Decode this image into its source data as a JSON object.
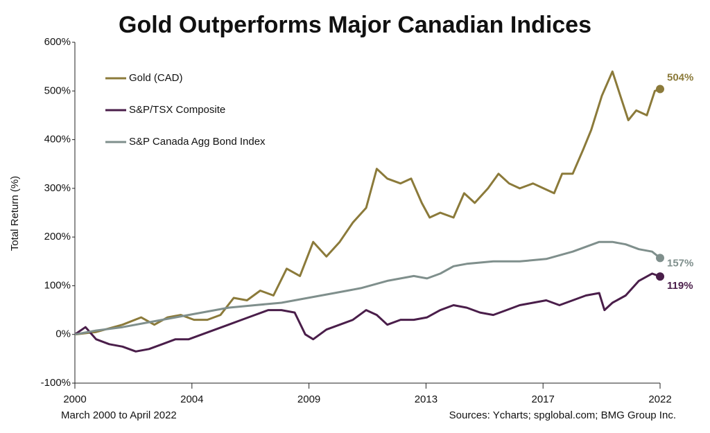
{
  "chart_data": {
    "type": "line",
    "title": "Gold Outperforms Major Canadian Indices",
    "subtitle": "March 2000 to April 2022",
    "source": "Sources: Ycharts; spglobal.com; BMG Group Inc.",
    "y_label": "Total Return (%)",
    "xlim": [
      2000.2,
      2022.3
    ],
    "xticks": [
      {
        "value": 2000.2,
        "label": "2000"
      },
      {
        "value": 2004.62,
        "label": "2004"
      },
      {
        "value": 2009.04,
        "label": "2009"
      },
      {
        "value": 2013.46,
        "label": "2013"
      },
      {
        "value": 2017.88,
        "label": "2017"
      },
      {
        "value": 2022.3,
        "label": "2022"
      }
    ],
    "ylim": [
      -100,
      600
    ],
    "yticks": [
      {
        "value": -100,
        "label": "-100%"
      },
      {
        "value": 0,
        "label": "0%"
      },
      {
        "value": 100,
        "label": "100%"
      },
      {
        "value": 200,
        "label": "200%"
      },
      {
        "value": 300,
        "label": "300%"
      },
      {
        "value": 400,
        "label": "400%"
      },
      {
        "value": 500,
        "label": "500%"
      },
      {
        "value": 600,
        "label": "600%"
      }
    ],
    "series": [
      {
        "name": "Gold (CAD)",
        "color": "#8b7a3a",
        "end_label": "504%",
        "x": [
          2000.2,
          2001,
          2002,
          2002.7,
          2003.2,
          2003.7,
          2004.2,
          2004.7,
          2005.2,
          2005.7,
          2006.2,
          2006.7,
          2007.2,
          2007.7,
          2008.2,
          2008.7,
          2009.2,
          2009.7,
          2010.2,
          2010.7,
          2011.2,
          2011.6,
          2012,
          2012.5,
          2012.9,
          2013.3,
          2013.6,
          2014,
          2014.5,
          2014.9,
          2015.3,
          2015.8,
          2016.2,
          2016.6,
          2017,
          2017.5,
          2017.9,
          2018.3,
          2018.6,
          2019,
          2019.4,
          2019.7,
          2020.1,
          2020.5,
          2020.8,
          2021.1,
          2021.4,
          2021.8,
          2022.1,
          2022.3
        ],
        "values": [
          0,
          5,
          20,
          35,
          20,
          35,
          40,
          30,
          30,
          40,
          75,
          70,
          90,
          80,
          135,
          120,
          190,
          160,
          190,
          230,
          260,
          340,
          320,
          310,
          320,
          270,
          240,
          250,
          240,
          290,
          270,
          300,
          330,
          310,
          300,
          310,
          300,
          290,
          330,
          330,
          380,
          420,
          490,
          540,
          490,
          440,
          460,
          450,
          500,
          504
        ]
      },
      {
        "name": "S&P/TSX Composite",
        "color": "#4a1e4a",
        "end_label": "119%",
        "x": [
          2000.2,
          2000.6,
          2001,
          2001.5,
          2002,
          2002.5,
          2003,
          2003.5,
          2004,
          2004.5,
          2005,
          2005.5,
          2006,
          2006.5,
          2007,
          2007.5,
          2008,
          2008.5,
          2008.9,
          2009.2,
          2009.7,
          2010.2,
          2010.7,
          2011.2,
          2011.6,
          2012,
          2012.5,
          2013,
          2013.5,
          2014,
          2014.5,
          2015,
          2015.5,
          2016,
          2016.5,
          2017,
          2017.5,
          2018,
          2018.5,
          2019,
          2019.5,
          2020,
          2020.2,
          2020.5,
          2021,
          2021.5,
          2022,
          2022.3
        ],
        "values": [
          0,
          15,
          -10,
          -20,
          -25,
          -35,
          -30,
          -20,
          -10,
          -10,
          0,
          10,
          20,
          30,
          40,
          50,
          50,
          45,
          0,
          -10,
          10,
          20,
          30,
          50,
          40,
          20,
          30,
          30,
          35,
          50,
          60,
          55,
          45,
          40,
          50,
          60,
          65,
          70,
          60,
          70,
          80,
          85,
          50,
          65,
          80,
          110,
          125,
          119
        ]
      },
      {
        "name": "S&P Canada Agg Bond Index",
        "color": "#7f8f8c",
        "end_label": "157%",
        "x": [
          2000.2,
          2001,
          2002,
          2003,
          2004,
          2005,
          2006,
          2007,
          2008,
          2009,
          2010,
          2011,
          2012,
          2013,
          2013.5,
          2014,
          2014.5,
          2015,
          2016,
          2017,
          2018,
          2019,
          2019.5,
          2020,
          2020.5,
          2021,
          2021.5,
          2022,
          2022.3
        ],
        "values": [
          0,
          8,
          15,
          25,
          35,
          45,
          55,
          60,
          65,
          75,
          85,
          95,
          110,
          120,
          115,
          125,
          140,
          145,
          150,
          150,
          155,
          170,
          180,
          190,
          190,
          185,
          175,
          170,
          157
        ]
      }
    ]
  }
}
